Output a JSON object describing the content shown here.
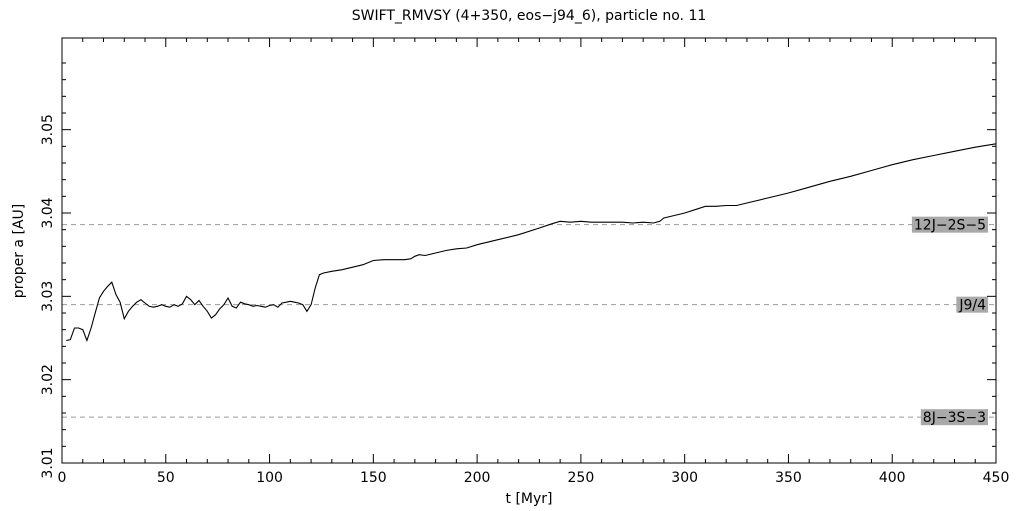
{
  "chart_data": {
    "type": "line",
    "title": "SWIFT_RMVSY (4+350, eos−j94_6), particle no. 11",
    "xlabel": "t [Myr]",
    "ylabel": "proper a [AU]",
    "xlim": [
      0,
      450
    ],
    "ylim": [
      3.01,
      3.061
    ],
    "x_ticks": [
      0,
      50,
      100,
      150,
      200,
      250,
      300,
      350,
      400,
      450
    ],
    "x_tick_labels": [
      "0",
      "50",
      "100",
      "150",
      "200",
      "250",
      "300",
      "350",
      "400",
      "450"
    ],
    "y_ticks": [
      3.01,
      3.02,
      3.03,
      3.04,
      3.05
    ],
    "y_tick_labels": [
      "3.01",
      "3.02",
      "3.03",
      "3.04",
      "3.05"
    ],
    "grid": false,
    "reference_lines": [
      {
        "label": "12J−2S−5",
        "y": 3.0386
      },
      {
        "label": "J9/4",
        "y": 3.029
      },
      {
        "label": "8J−3S−3",
        "y": 3.0155
      }
    ],
    "series": [
      {
        "x": [
          2,
          4,
          6,
          8,
          10,
          12,
          14,
          16,
          18,
          20,
          22,
          24,
          26,
          28,
          30,
          32,
          34,
          36,
          38,
          40,
          42,
          44,
          46,
          48,
          50,
          52,
          54,
          56,
          58,
          60,
          62,
          64,
          66,
          68,
          70,
          72,
          74,
          76,
          78,
          80,
          82,
          84,
          86,
          88,
          90,
          92,
          94,
          96,
          98,
          100,
          102,
          104,
          106,
          108,
          110,
          112,
          114,
          116,
          118,
          120,
          122,
          124,
          126,
          130,
          135,
          140,
          145,
          150,
          155,
          160,
          165,
          168,
          170,
          172,
          175,
          180,
          185,
          190,
          195,
          200,
          210,
          220,
          230,
          236,
          240,
          245,
          250,
          255,
          260,
          265,
          270,
          275,
          280,
          285,
          288,
          290,
          295,
          300,
          305,
          310,
          315,
          320,
          325,
          330,
          340,
          350,
          360,
          370,
          380,
          390,
          400,
          410,
          420,
          430,
          440,
          450
        ],
        "y": [
          3.0247,
          3.0248,
          3.0262,
          3.0262,
          3.026,
          3.0247,
          3.0262,
          3.028,
          3.0298,
          3.0306,
          3.0312,
          3.0317,
          3.0302,
          3.0293,
          3.0273,
          3.0282,
          3.0288,
          3.0293,
          3.0296,
          3.0292,
          3.0288,
          3.0287,
          3.0288,
          3.029,
          3.0288,
          3.0287,
          3.029,
          3.0288,
          3.0291,
          3.03,
          3.0296,
          3.029,
          3.0295,
          3.0288,
          3.0282,
          3.0274,
          3.0278,
          3.0285,
          3.029,
          3.0298,
          3.0288,
          3.0286,
          3.0293,
          3.0291,
          3.029,
          3.0288,
          3.0289,
          3.0288,
          3.0287,
          3.0289,
          3.029,
          3.0287,
          3.0292,
          3.0293,
          3.0294,
          3.0293,
          3.0292,
          3.029,
          3.0282,
          3.029,
          3.031,
          3.0326,
          3.0328,
          3.033,
          3.0332,
          3.0335,
          3.0338,
          3.0343,
          3.0344,
          3.0344,
          3.0344,
          3.0345,
          3.0348,
          3.035,
          3.0349,
          3.0352,
          3.0355,
          3.0357,
          3.0358,
          3.0362,
          3.0368,
          3.0374,
          3.0382,
          3.0387,
          3.039,
          3.0389,
          3.039,
          3.0389,
          3.0389,
          3.0389,
          3.0389,
          3.0388,
          3.0389,
          3.0388,
          3.039,
          3.0394,
          3.0397,
          3.04,
          3.0404,
          3.0408,
          3.0408,
          3.0409,
          3.0409,
          3.0412,
          3.0418,
          3.0424,
          3.0431,
          3.0438,
          3.0444,
          3.0451,
          3.0458,
          3.0464,
          3.0469,
          3.0474,
          3.0479,
          3.0483
        ]
      }
    ]
  }
}
